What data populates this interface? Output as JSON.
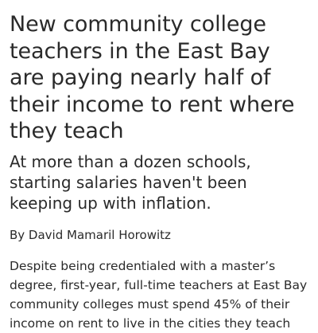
{
  "article": {
    "headline": "New community college teachers in the East Bay are paying nearly half of their income to rent where they teach",
    "subhead": "At more than a dozen schools, starting salaries haven't been keeping up with inflation.",
    "byline": "By David Mamaril Horowitz",
    "body": "Despite being credentialed with a master’s degree, first-year, full-time teachers at East Bay community colleges must spend 45% of their income on rent to live in the cities they teach"
  }
}
